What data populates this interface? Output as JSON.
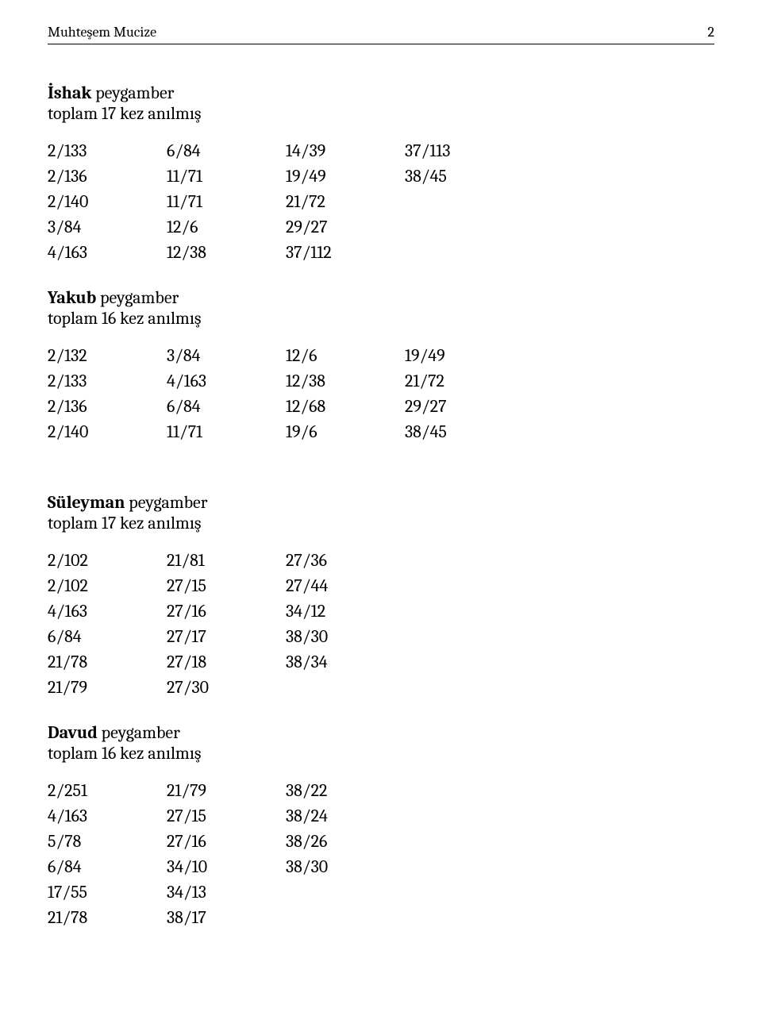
{
  "header": {
    "title": "Muhteşem Mucize",
    "page_number": "2"
  },
  "sections": [
    {
      "title_bold": "İshak",
      "title_rest": " peygamber",
      "subtitle": "toplam 17 kez anılmış",
      "columns": 4,
      "rows": [
        [
          "2/133",
          "6/84",
          "14/39",
          "37/113"
        ],
        [
          "2/136",
          "11/71",
          "19/49",
          "38/45"
        ],
        [
          "2/140",
          "11/71",
          "21/72",
          ""
        ],
        [
          "3/84",
          "12/6",
          "29/27",
          ""
        ],
        [
          "4/163",
          "12/38",
          "37/112",
          ""
        ]
      ],
      "gap_after": "block"
    },
    {
      "title_bold": "Yakub",
      "title_rest": " peygamber",
      "subtitle": "toplam 16 kez anılmış",
      "columns": 4,
      "rows": [
        [
          "2/132",
          "3/84",
          "12/6",
          "19/49"
        ],
        [
          "2/133",
          "4/163",
          "12/38",
          "21/72"
        ],
        [
          "2/136",
          "6/84",
          "12/68",
          "29/27"
        ],
        [
          "2/140",
          "11/71",
          "19/6",
          "38/45"
        ]
      ],
      "gap_after": "block-lg"
    },
    {
      "title_bold": "Süleyman",
      "title_rest": " peygamber",
      "subtitle": "toplam 17 kez anılmış",
      "columns": 3,
      "rows": [
        [
          "2/102",
          "21/81",
          "27/36"
        ],
        [
          "2/102",
          "27/15",
          "27/44"
        ],
        [
          "4/163",
          "27/16",
          "34/12"
        ],
        [
          "6/84",
          "27/17",
          "38/30"
        ],
        [
          "21/78",
          "27/18",
          "38/34"
        ],
        [
          "21/79",
          "27/30",
          ""
        ]
      ],
      "gap_after": "block"
    },
    {
      "title_bold": "Davud",
      "title_rest": " peygamber",
      "subtitle": "toplam 16 kez anılmış",
      "columns": 3,
      "rows": [
        [
          "2/251",
          "21/79",
          "38/22"
        ],
        [
          "4/163",
          "27/15",
          "38/24"
        ],
        [
          "5/78",
          "27/16",
          "38/26"
        ],
        [
          "6/84",
          "34/10",
          "38/30"
        ],
        [
          "17/55",
          "34/13",
          ""
        ],
        [
          "21/78",
          "38/17",
          ""
        ]
      ],
      "gap_after": "block"
    }
  ]
}
